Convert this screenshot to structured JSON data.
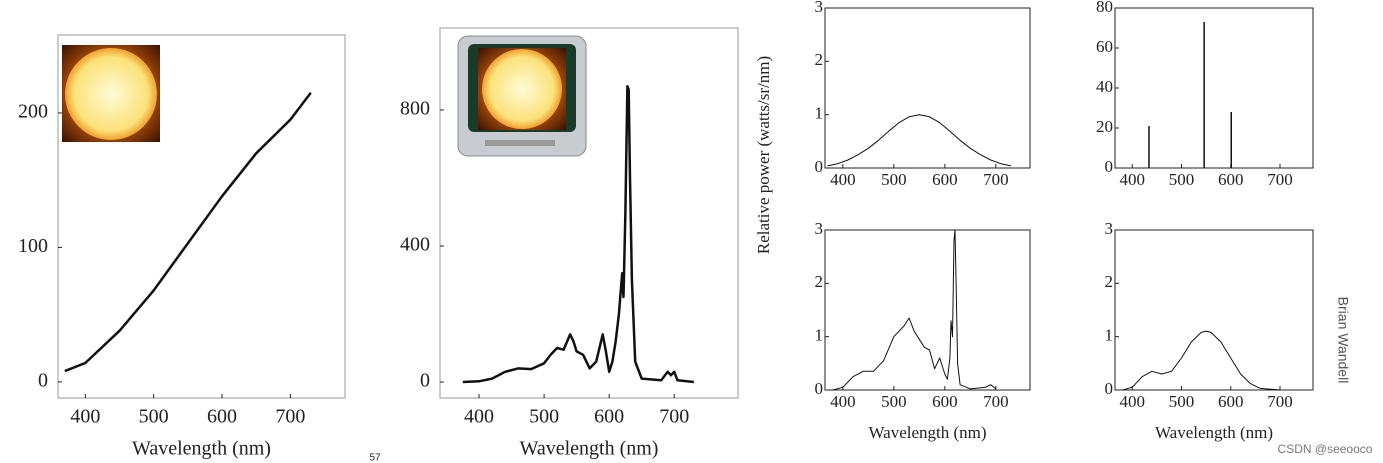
{
  "chart_data": [
    {
      "type": "line",
      "x": [
        370,
        400,
        450,
        500,
        550,
        600,
        650,
        700,
        730
      ],
      "values": [
        8,
        14,
        38,
        68,
        103,
        138,
        170,
        195,
        215
      ],
      "xlim": [
        360,
        780
      ],
      "ylim": [
        -12,
        258
      ],
      "xticks": [
        400,
        500,
        600,
        700
      ],
      "yticks": [
        0,
        100,
        200
      ],
      "xlabel": "Wavelength (nm)",
      "color": "#111"
    },
    {
      "type": "line",
      "x": [
        375,
        400,
        420,
        440,
        460,
        480,
        500,
        510,
        520,
        530,
        540,
        545,
        550,
        560,
        570,
        580,
        590,
        595,
        600,
        605,
        610,
        615,
        620,
        622,
        625,
        628,
        630,
        632,
        635,
        640,
        650,
        680,
        690,
        695,
        700,
        705,
        730
      ],
      "values": [
        0,
        2,
        10,
        30,
        40,
        38,
        55,
        80,
        100,
        95,
        140,
        120,
        90,
        80,
        40,
        60,
        140,
        90,
        30,
        60,
        120,
        200,
        320,
        250,
        500,
        870,
        860,
        600,
        300,
        60,
        10,
        5,
        30,
        20,
        30,
        5,
        0
      ],
      "xlim": [
        340,
        798
      ],
      "ylim": [
        -47,
        1041
      ],
      "xticks": [
        400,
        500,
        600,
        700
      ],
      "yticks": [
        0,
        400,
        800
      ],
      "xlabel": "Wavelength (nm)",
      "color": "#111"
    },
    {
      "type": "line",
      "x": [
        370,
        390,
        410,
        430,
        450,
        470,
        490,
        510,
        530,
        550,
        570,
        590,
        610,
        630,
        650,
        670,
        690,
        710,
        730
      ],
      "values": [
        0.04,
        0.08,
        0.15,
        0.25,
        0.37,
        0.52,
        0.69,
        0.85,
        0.96,
        1.0,
        0.96,
        0.85,
        0.69,
        0.52,
        0.37,
        0.25,
        0.15,
        0.08,
        0.04
      ],
      "xlim": [
        365,
        767
      ],
      "ylim": [
        0,
        3
      ],
      "xticks": [
        400,
        500,
        600,
        700
      ],
      "yticks": [
        0,
        1,
        2,
        3
      ],
      "ylabel": "Relative power (watts/sr/nm)",
      "color": "#111"
    },
    {
      "type": "stem",
      "x": [
        434,
        546,
        601
      ],
      "values": [
        21,
        73,
        28
      ],
      "xlim": [
        365,
        767
      ],
      "ylim": [
        0,
        80
      ],
      "xticks": [
        400,
        500,
        600,
        700
      ],
      "yticks": [
        0,
        20,
        40,
        60,
        80
      ],
      "color": "#111"
    },
    {
      "type": "line",
      "x": [
        380,
        400,
        420,
        440,
        460,
        480,
        500,
        520,
        530,
        540,
        560,
        570,
        580,
        590,
        600,
        605,
        610,
        612,
        615,
        618,
        620,
        622,
        625,
        630,
        650,
        680,
        690,
        700
      ],
      "values": [
        0,
        0.05,
        0.25,
        0.35,
        0.35,
        0.55,
        1.0,
        1.2,
        1.35,
        1.1,
        0.8,
        0.75,
        0.4,
        0.6,
        0.3,
        0.2,
        0.6,
        1.3,
        1.0,
        2.8,
        3.0,
        2.0,
        0.5,
        0.1,
        0.02,
        0.05,
        0.1,
        0.02
      ],
      "xlim": [
        365,
        767
      ],
      "ylim": [
        0,
        3
      ],
      "xticks": [
        400,
        500,
        600,
        700
      ],
      "yticks": [
        0,
        1,
        2,
        3
      ],
      "xlabel": "Wavelength (nm)",
      "color": "#111"
    },
    {
      "type": "line",
      "x": [
        380,
        400,
        420,
        440,
        460,
        480,
        500,
        520,
        540,
        550,
        560,
        580,
        600,
        620,
        640,
        660,
        700
      ],
      "values": [
        0,
        0.05,
        0.25,
        0.35,
        0.3,
        0.35,
        0.6,
        0.9,
        1.08,
        1.1,
        1.08,
        0.9,
        0.6,
        0.3,
        0.12,
        0.03,
        0
      ],
      "xlim": [
        365,
        767
      ],
      "ylim": [
        0,
        3
      ],
      "xticks": [
        400,
        500,
        600,
        700
      ],
      "yticks": [
        0,
        1,
        2,
        3
      ],
      "xlabel": "Wavelength (nm)",
      "color": "#111"
    }
  ],
  "credit": "Brian Wandell",
  "watermark": "CSDN @seeooco",
  "page_number": "57"
}
